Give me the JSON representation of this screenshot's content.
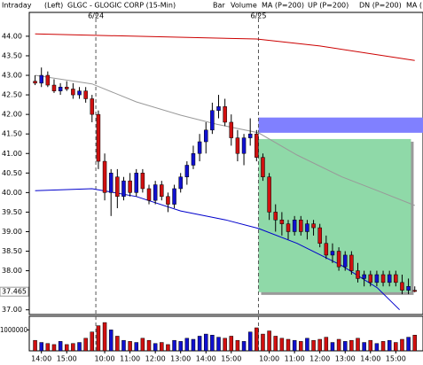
{
  "chart_data": {
    "type": "candlestick",
    "header": {
      "mode": "Intraday",
      "axis_side": "(Left)",
      "title": "GLGC - GLOGIC CORP (15-Min)",
      "style": "Bar"
    },
    "up_color": "#1010d0",
    "down_color": "#d01010",
    "ylim": [
      36.88,
      44.61
    ],
    "yticks": [
      {
        "value": 44,
        "label": "44.00"
      },
      {
        "value": 43.5,
        "label": "43.50"
      },
      {
        "value": 43,
        "label": "43.00"
      },
      {
        "value": 42.5,
        "label": "42.50"
      },
      {
        "value": 42,
        "label": "42.00"
      },
      {
        "value": 41.5,
        "label": "41.50"
      },
      {
        "value": 41,
        "label": "41.00"
      },
      {
        "value": 40.5,
        "label": "40.50"
      },
      {
        "value": 40,
        "label": "40.00"
      },
      {
        "value": 39.5,
        "label": "39.50"
      },
      {
        "value": 39,
        "label": "39.00"
      },
      {
        "value": 38.5,
        "label": "38.50"
      },
      {
        "value": 38,
        "label": "38.00"
      },
      {
        "value": 37,
        "label": "37.00"
      }
    ],
    "last_price": {
      "value": 37.465,
      "label": "37.465"
    },
    "xlim": [
      -0.5,
      61.3
    ],
    "xticks": [
      {
        "value": 1,
        "label": "14:00"
      },
      {
        "value": 5,
        "label": "15:00"
      },
      {
        "value": 11,
        "label": "10:00"
      },
      {
        "value": 15,
        "label": "11:00"
      },
      {
        "value": 19,
        "label": "12:00"
      },
      {
        "value": 23,
        "label": "13:00"
      },
      {
        "value": 27,
        "label": "14:00"
      },
      {
        "value": 31,
        "label": "15:00"
      },
      {
        "value": 37,
        "label": "10:00"
      },
      {
        "value": 41,
        "label": "11:00"
      },
      {
        "value": 45,
        "label": "12:00"
      },
      {
        "value": 49,
        "label": "13:00"
      },
      {
        "value": 53,
        "label": "14:00"
      },
      {
        "value": 57,
        "label": "15:00"
      }
    ],
    "day_breaks": [
      {
        "value": 9.6,
        "label": "6/24"
      },
      {
        "value": 35.3,
        "label": "6/25"
      }
    ],
    "candles": [
      [
        42.85,
        43.0,
        42.75,
        42.8
      ],
      [
        42.8,
        43.2,
        42.7,
        43.0
      ],
      [
        43.0,
        43.1,
        42.7,
        42.75
      ],
      [
        42.75,
        42.9,
        42.55,
        42.6
      ],
      [
        42.6,
        42.8,
        42.5,
        42.7
      ],
      [
        42.7,
        42.85,
        42.6,
        42.65
      ],
      [
        42.65,
        42.8,
        42.4,
        42.5
      ],
      [
        42.5,
        42.7,
        42.4,
        42.6
      ],
      [
        42.6,
        42.7,
        42.3,
        42.4
      ],
      [
        42.4,
        42.5,
        41.8,
        42.0
      ],
      [
        42.0,
        42.1,
        40.6,
        40.8
      ],
      [
        40.8,
        41.0,
        39.8,
        40.0
      ],
      [
        40.0,
        40.6,
        39.4,
        40.5
      ],
      [
        40.4,
        40.6,
        39.6,
        39.9
      ],
      [
        39.9,
        40.4,
        39.8,
        40.3
      ],
      [
        40.3,
        40.5,
        39.9,
        40.0
      ],
      [
        40.0,
        40.6,
        39.9,
        40.5
      ],
      [
        40.5,
        40.6,
        40.0,
        40.1
      ],
      [
        40.1,
        40.2,
        39.7,
        39.8
      ],
      [
        39.8,
        40.3,
        39.7,
        40.2
      ],
      [
        40.2,
        40.3,
        39.8,
        39.9
      ],
      [
        39.9,
        40.0,
        39.5,
        39.7
      ],
      [
        39.7,
        40.2,
        39.6,
        40.1
      ],
      [
        40.1,
        40.5,
        40.0,
        40.4
      ],
      [
        40.4,
        40.8,
        40.2,
        40.7
      ],
      [
        40.7,
        41.2,
        40.6,
        41.0
      ],
      [
        41.0,
        41.5,
        40.8,
        41.3
      ],
      [
        41.3,
        41.8,
        41.0,
        41.6
      ],
      [
        41.6,
        42.3,
        41.5,
        42.1
      ],
      [
        42.1,
        42.5,
        41.9,
        42.2
      ],
      [
        42.2,
        42.4,
        41.7,
        41.8
      ],
      [
        41.8,
        42.0,
        41.2,
        41.4
      ],
      [
        41.4,
        41.6,
        40.8,
        41.0
      ],
      [
        41.0,
        41.5,
        40.7,
        41.4
      ],
      [
        41.4,
        41.9,
        41.2,
        41.5
      ],
      [
        41.5,
        41.6,
        40.8,
        40.9
      ],
      [
        40.9,
        41.0,
        40.3,
        40.4
      ],
      [
        40.4,
        40.5,
        39.3,
        39.5
      ],
      [
        39.5,
        39.7,
        39.0,
        39.3
      ],
      [
        39.3,
        39.5,
        38.9,
        39.2
      ],
      [
        39.2,
        39.3,
        38.8,
        39.0
      ],
      [
        39.0,
        39.4,
        38.9,
        39.3
      ],
      [
        39.3,
        39.4,
        38.9,
        39.0
      ],
      [
        39.0,
        39.3,
        38.8,
        39.2
      ],
      [
        39.2,
        39.3,
        38.9,
        39.1
      ],
      [
        39.1,
        39.2,
        38.6,
        38.7
      ],
      [
        38.7,
        38.9,
        38.3,
        38.4
      ],
      [
        38.4,
        38.7,
        38.2,
        38.5
      ],
      [
        38.5,
        38.6,
        38.0,
        38.1
      ],
      [
        38.1,
        38.5,
        38.0,
        38.4
      ],
      [
        38.4,
        38.5,
        37.9,
        38.0
      ],
      [
        38.0,
        38.2,
        37.7,
        37.8
      ],
      [
        37.8,
        38.0,
        37.6,
        37.9
      ],
      [
        37.9,
        38.0,
        37.6,
        37.7
      ],
      [
        37.7,
        38.0,
        37.6,
        37.9
      ],
      [
        37.9,
        38.0,
        37.6,
        37.7
      ],
      [
        37.7,
        38.0,
        37.6,
        37.9
      ],
      [
        37.9,
        38.0,
        37.6,
        37.7
      ],
      [
        37.7,
        37.9,
        37.4,
        37.5
      ],
      [
        37.5,
        37.8,
        37.4,
        37.6
      ],
      [
        37.5,
        37.6,
        37.45,
        37.47
      ]
    ],
    "series": [
      {
        "name": "Volume",
        "color": "#00aa00",
        "values": [
          500000,
          400000,
          350000,
          300000,
          450000,
          300000,
          350000,
          400000,
          600000,
          900000,
          1200000,
          1350000,
          1000000,
          700000,
          500000,
          450000,
          400000,
          600000,
          500000,
          350000,
          400000,
          300000,
          500000,
          450000,
          600000,
          550000,
          700000,
          800000,
          750000,
          650000,
          600000,
          700000,
          500000,
          450000,
          900000,
          1100000,
          800000,
          950000,
          700000,
          600000,
          550000,
          500000,
          450000,
          600000,
          500000,
          550000,
          650000,
          400000,
          550000,
          450000,
          500000,
          600000,
          400000,
          500000,
          350000,
          450000,
          500000,
          400000,
          550000,
          650000,
          750000
        ]
      },
      {
        "name": "MA (P=200)",
        "color": "#cc0000",
        "x": [
          0,
          35,
          45,
          60
        ],
        "values": [
          44.06,
          43.93,
          43.75,
          43.38
        ]
      },
      {
        "name": "UP (P=200)",
        "color": "#00aa00"
      },
      {
        "name": "DN (P=200)",
        "color": "#0000cc",
        "x": [
          0,
          9,
          16,
          23,
          30.1,
          35.3,
          41.4,
          48.5,
          54.1,
          57.6
        ],
        "values": [
          40.05,
          40.1,
          39.9,
          39.53,
          39.3,
          39.08,
          38.7,
          38.13,
          37.56,
          37.0
        ]
      },
      {
        "name": "MA (",
        "color": "#999999",
        "x": [
          0,
          9,
          16,
          23,
          28.7,
          35.3,
          41.4,
          48.5,
          54.1,
          60
        ],
        "values": [
          43.0,
          42.78,
          42.32,
          41.98,
          41.75,
          41.53,
          40.96,
          40.4,
          40.05,
          39.67
        ]
      }
    ],
    "volume_ylim": [
      0,
      1650000
    ],
    "volume_yticks": [
      1000000
    ],
    "zones": [
      {
        "color": "#8080ff",
        "x": [
          35.3,
          61.3
        ],
        "y": [
          41.53,
          41.92
        ]
      },
      {
        "color": "#8fd9a8",
        "x": [
          35.3,
          59.4
        ],
        "y": [
          37.45,
          41.37
        ]
      }
    ]
  }
}
